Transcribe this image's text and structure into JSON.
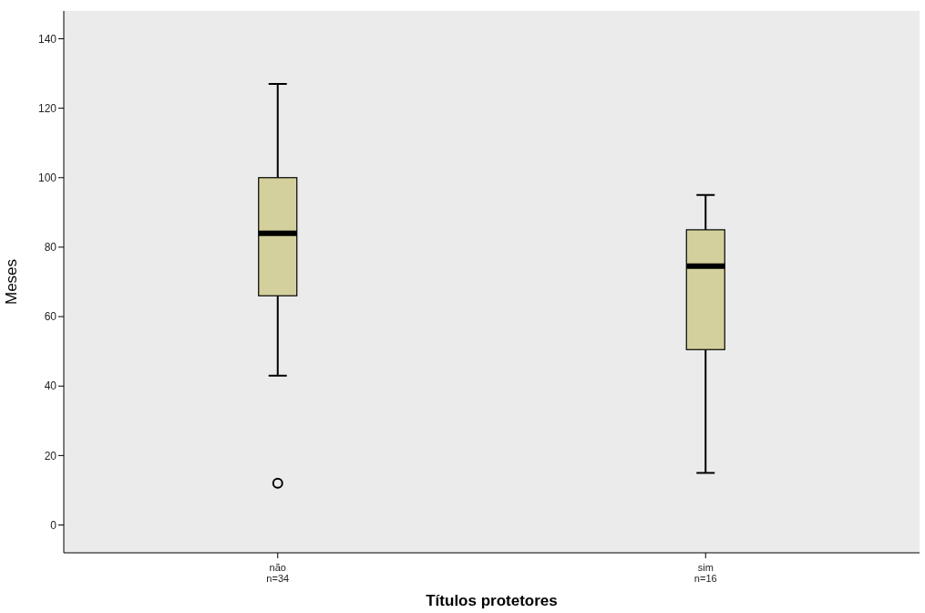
{
  "chart_data": {
    "type": "box",
    "xlabel": "Títulos protetores",
    "ylabel": "Meses",
    "categories": [
      "não\nn=34",
      "sim\nn=16"
    ],
    "color": "#d4d09d",
    "boxes": [
      {
        "low": 43,
        "q1": 66,
        "median": 84,
        "q3": 100,
        "high": 127,
        "outliers": [
          12
        ]
      },
      {
        "low": 15,
        "q1": 50.5,
        "median": 74.5,
        "q3": 85,
        "high": 95
      }
    ],
    "ylim": [
      -8,
      148
    ],
    "yticks": [
      0,
      20,
      40,
      60,
      80,
      100,
      120,
      140
    ]
  }
}
